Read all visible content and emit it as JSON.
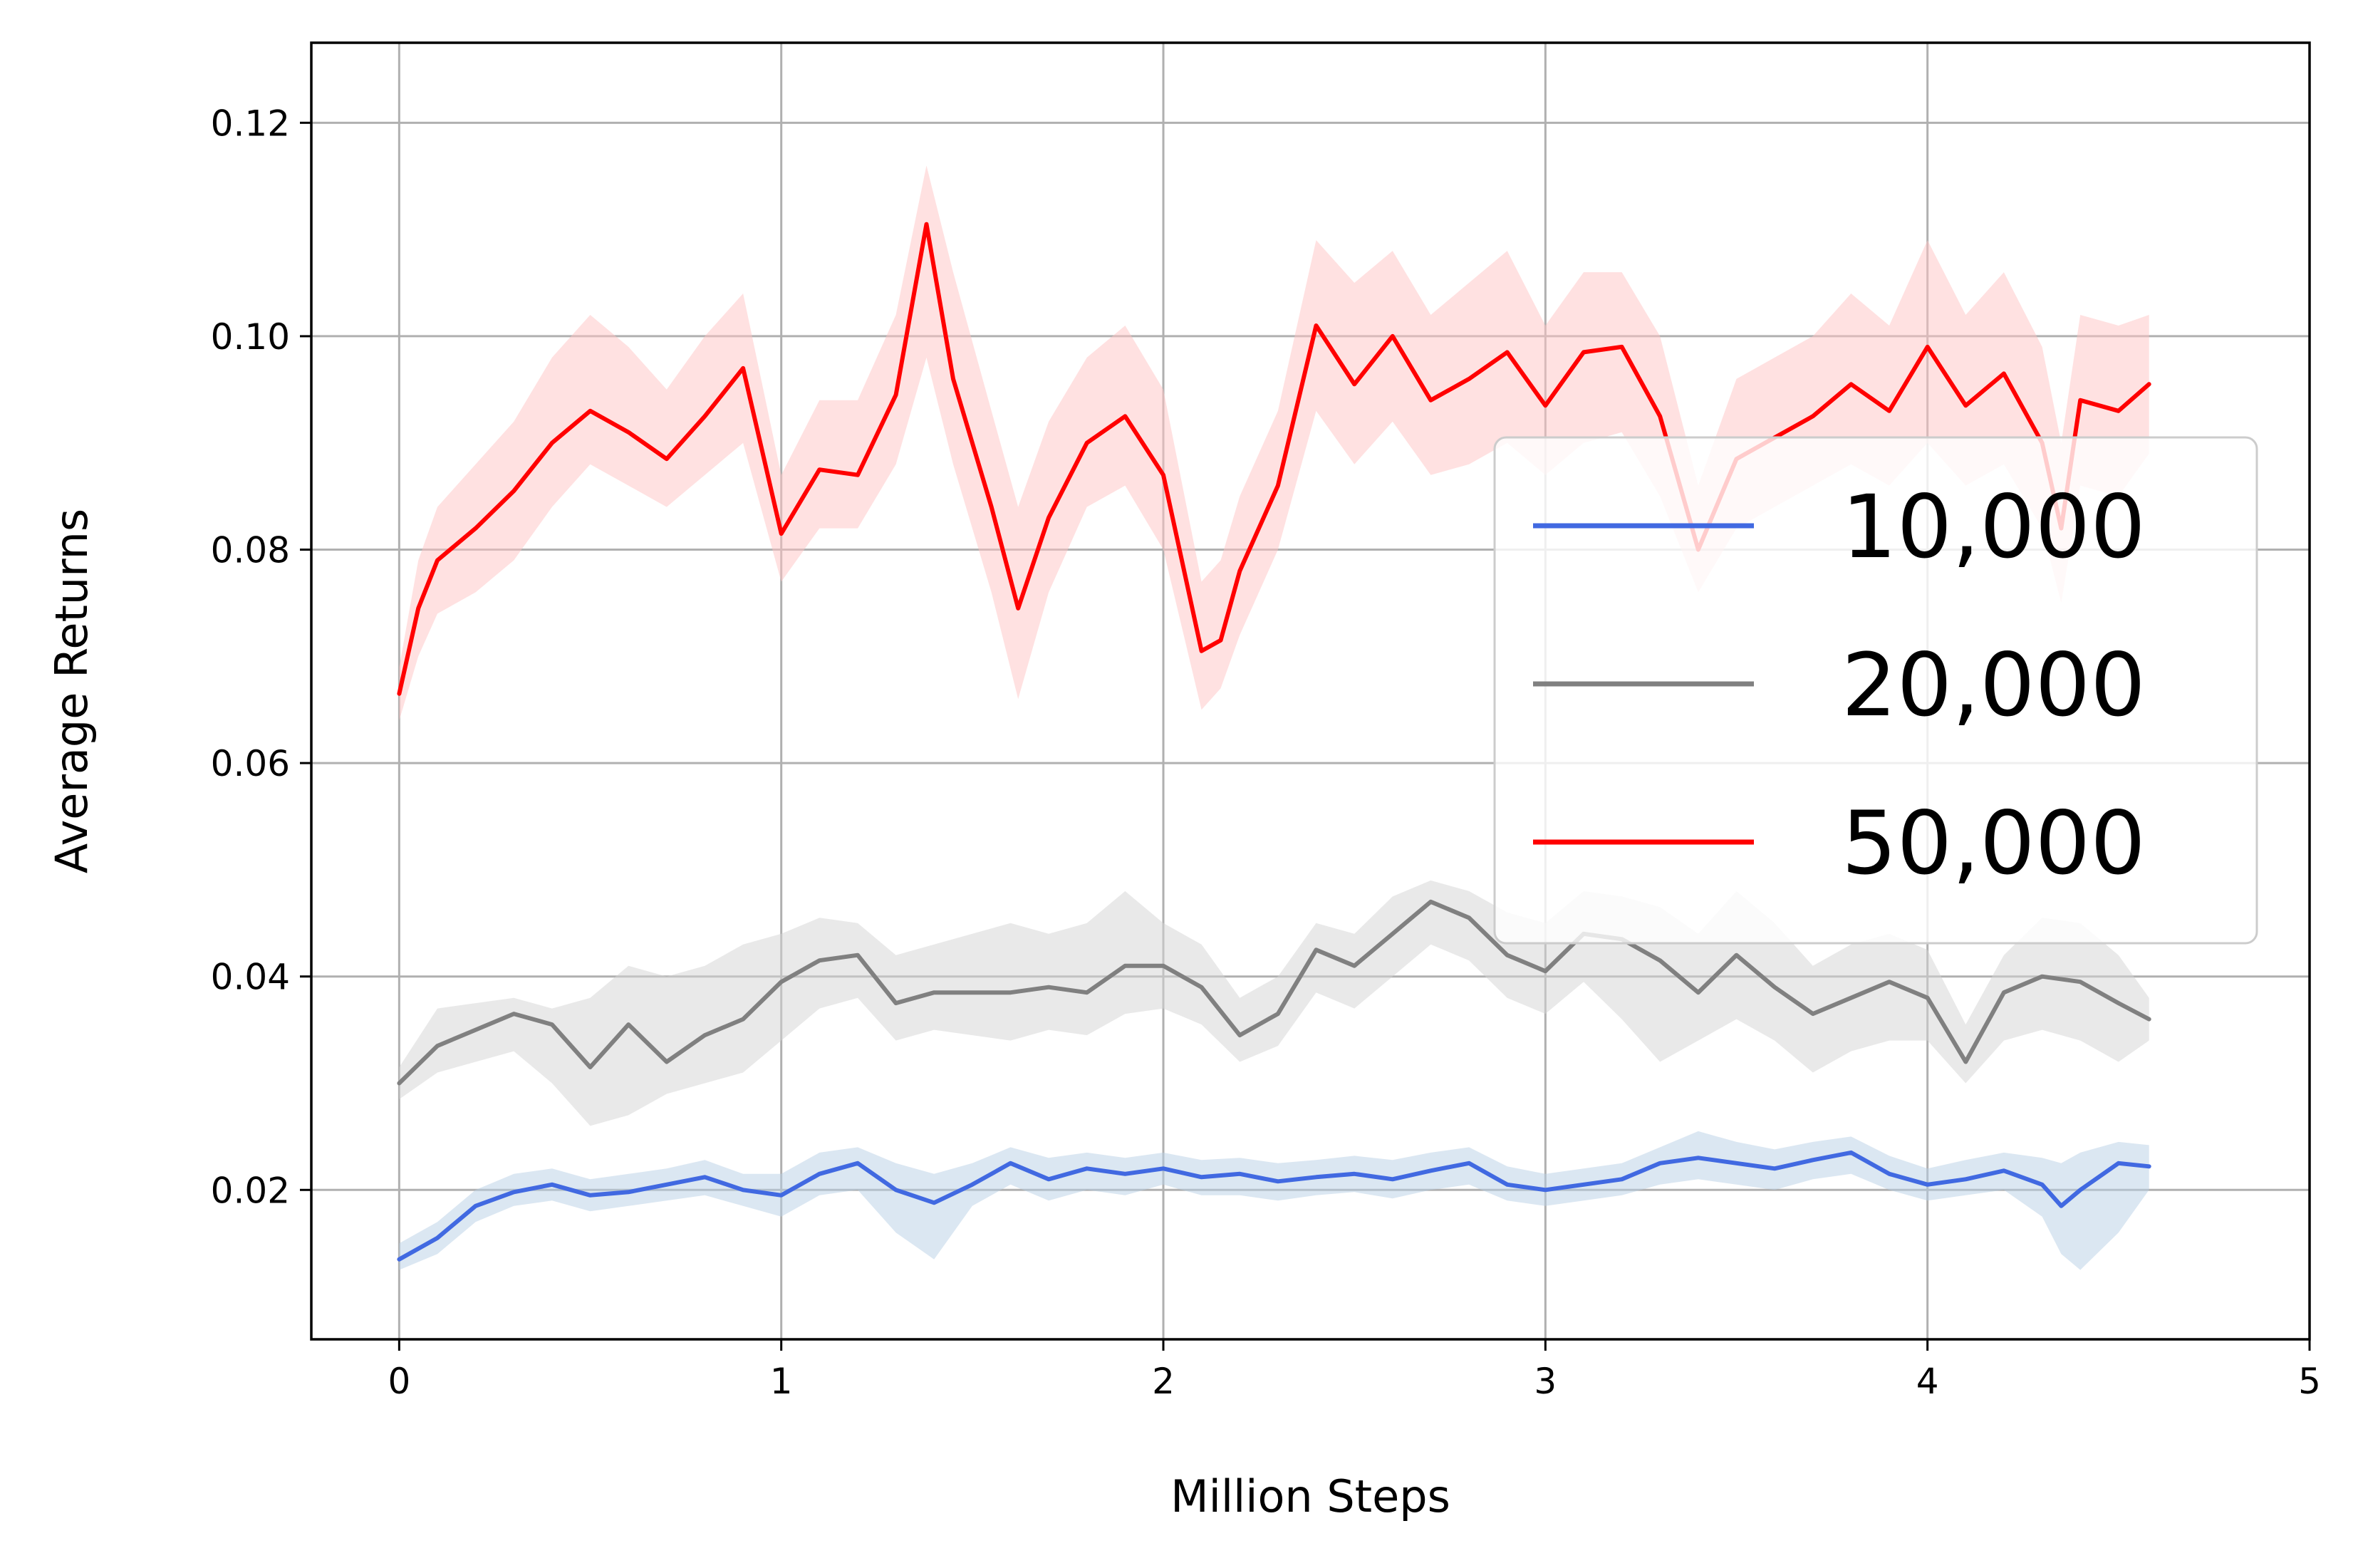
{
  "chart_data": {
    "type": "line",
    "xlabel": "Million Steps",
    "ylabel": "Average Returns",
    "xlim": [
      -0.23,
      5.0
    ],
    "ylim": [
      0.006,
      0.1275
    ],
    "xticks": [
      0,
      1,
      2,
      3,
      4,
      5
    ],
    "xtick_labels": [
      "0",
      "1",
      "2",
      "3",
      "4",
      "5"
    ],
    "yticks": [
      0.02,
      0.04,
      0.06,
      0.08,
      0.1,
      0.12
    ],
    "ytick_labels": [
      "0.02",
      "0.04",
      "0.06",
      "0.08",
      "0.10",
      "0.12"
    ],
    "grid": true,
    "legend_position": "center-right",
    "series": [
      {
        "name": "10,000",
        "color": "#4169e1",
        "band_color": "#b8cfe6",
        "x": [
          0.0,
          0.1,
          0.2,
          0.3,
          0.4,
          0.5,
          0.6,
          0.7,
          0.8,
          0.9,
          1.0,
          1.1,
          1.2,
          1.3,
          1.4,
          1.5,
          1.6,
          1.7,
          1.8,
          1.9,
          2.0,
          2.1,
          2.2,
          2.3,
          2.4,
          2.5,
          2.6,
          2.7,
          2.8,
          2.9,
          3.0,
          3.1,
          3.2,
          3.3,
          3.4,
          3.5,
          3.6,
          3.7,
          3.8,
          3.9,
          4.0,
          4.1,
          4.2,
          4.3,
          4.35,
          4.4,
          4.5,
          4.58
        ],
        "y": [
          0.0135,
          0.0155,
          0.0185,
          0.0198,
          0.0205,
          0.0195,
          0.0198,
          0.0205,
          0.0212,
          0.02,
          0.0195,
          0.0215,
          0.0225,
          0.02,
          0.0188,
          0.0205,
          0.0225,
          0.021,
          0.022,
          0.0215,
          0.022,
          0.0212,
          0.0215,
          0.0208,
          0.0212,
          0.0215,
          0.021,
          0.0218,
          0.0225,
          0.0205,
          0.02,
          0.0205,
          0.021,
          0.0225,
          0.023,
          0.0225,
          0.022,
          0.0228,
          0.0235,
          0.0215,
          0.0205,
          0.021,
          0.0218,
          0.0205,
          0.0185,
          0.02,
          0.0225,
          0.0222
        ],
        "lower": [
          0.0125,
          0.014,
          0.017,
          0.0185,
          0.019,
          0.018,
          0.0185,
          0.019,
          0.0195,
          0.0185,
          0.0175,
          0.0195,
          0.02,
          0.016,
          0.0135,
          0.0185,
          0.0205,
          0.019,
          0.02,
          0.0195,
          0.0205,
          0.0195,
          0.0195,
          0.019,
          0.0195,
          0.0198,
          0.0192,
          0.02,
          0.0205,
          0.019,
          0.0185,
          0.019,
          0.0195,
          0.0205,
          0.021,
          0.0205,
          0.02,
          0.021,
          0.0215,
          0.02,
          0.019,
          0.0195,
          0.02,
          0.0175,
          0.014,
          0.0125,
          0.016,
          0.02
        ],
        "upper": [
          0.015,
          0.017,
          0.02,
          0.0215,
          0.022,
          0.021,
          0.0215,
          0.022,
          0.0228,
          0.0215,
          0.0215,
          0.0235,
          0.024,
          0.0225,
          0.0215,
          0.0225,
          0.024,
          0.023,
          0.0235,
          0.023,
          0.0235,
          0.0228,
          0.023,
          0.0225,
          0.0228,
          0.0232,
          0.0228,
          0.0235,
          0.024,
          0.0222,
          0.0215,
          0.022,
          0.0225,
          0.024,
          0.0255,
          0.0245,
          0.0238,
          0.0245,
          0.025,
          0.0232,
          0.022,
          0.0228,
          0.0235,
          0.023,
          0.0225,
          0.0235,
          0.0245,
          0.0242
        ]
      },
      {
        "name": "20,000",
        "color": "#808080",
        "band_color": "#d3d3d3",
        "x": [
          0.0,
          0.1,
          0.2,
          0.3,
          0.4,
          0.5,
          0.6,
          0.7,
          0.8,
          0.9,
          1.0,
          1.1,
          1.2,
          1.3,
          1.4,
          1.5,
          1.6,
          1.7,
          1.8,
          1.9,
          2.0,
          2.1,
          2.2,
          2.3,
          2.4,
          2.5,
          2.6,
          2.7,
          2.8,
          2.9,
          3.0,
          3.1,
          3.2,
          3.3,
          3.4,
          3.5,
          3.6,
          3.7,
          3.8,
          3.9,
          4.0,
          4.1,
          4.2,
          4.3,
          4.4,
          4.5,
          4.58
        ],
        "y": [
          0.03,
          0.0335,
          0.035,
          0.0365,
          0.0355,
          0.0315,
          0.0355,
          0.032,
          0.0345,
          0.036,
          0.0395,
          0.0415,
          0.042,
          0.0375,
          0.0385,
          0.0385,
          0.0385,
          0.039,
          0.0385,
          0.041,
          0.041,
          0.039,
          0.0345,
          0.0365,
          0.0425,
          0.041,
          0.044,
          0.047,
          0.0455,
          0.042,
          0.0405,
          0.044,
          0.0435,
          0.0415,
          0.0385,
          0.042,
          0.039,
          0.0365,
          0.038,
          0.0395,
          0.038,
          0.032,
          0.0385,
          0.04,
          0.0395,
          0.0375,
          0.036
        ],
        "lower": [
          0.0285,
          0.031,
          0.032,
          0.033,
          0.03,
          0.026,
          0.027,
          0.029,
          0.03,
          0.031,
          0.034,
          0.037,
          0.038,
          0.034,
          0.035,
          0.0345,
          0.034,
          0.035,
          0.0345,
          0.0365,
          0.037,
          0.0355,
          0.032,
          0.0335,
          0.0385,
          0.037,
          0.04,
          0.043,
          0.0415,
          0.038,
          0.0365,
          0.0395,
          0.036,
          0.032,
          0.034,
          0.036,
          0.034,
          0.031,
          0.033,
          0.034,
          0.034,
          0.03,
          0.034,
          0.035,
          0.034,
          0.032,
          0.034
        ],
        "upper": [
          0.0315,
          0.037,
          0.0375,
          0.038,
          0.037,
          0.038,
          0.041,
          0.04,
          0.041,
          0.043,
          0.044,
          0.0455,
          0.045,
          0.042,
          0.043,
          0.044,
          0.045,
          0.044,
          0.045,
          0.048,
          0.045,
          0.043,
          0.038,
          0.04,
          0.045,
          0.044,
          0.0475,
          0.049,
          0.048,
          0.046,
          0.045,
          0.048,
          0.0475,
          0.0465,
          0.044,
          0.048,
          0.045,
          0.041,
          0.043,
          0.044,
          0.0425,
          0.0355,
          0.042,
          0.0455,
          0.045,
          0.042,
          0.038
        ]
      },
      {
        "name": "50,000",
        "color": "#ff0000",
        "band_color": "#ffc4c4",
        "x": [
          0.0,
          0.05,
          0.1,
          0.2,
          0.3,
          0.4,
          0.5,
          0.6,
          0.7,
          0.8,
          0.9,
          1.0,
          1.1,
          1.2,
          1.3,
          1.38,
          1.45,
          1.55,
          1.62,
          1.7,
          1.8,
          1.9,
          2.0,
          2.1,
          2.15,
          2.2,
          2.3,
          2.4,
          2.5,
          2.6,
          2.7,
          2.8,
          2.9,
          3.0,
          3.1,
          3.2,
          3.3,
          3.4,
          3.5,
          3.6,
          3.7,
          3.8,
          3.9,
          4.0,
          4.1,
          4.2,
          4.3,
          4.35,
          4.4,
          4.5,
          4.58
        ],
        "y": [
          0.0665,
          0.0745,
          0.079,
          0.082,
          0.0855,
          0.09,
          0.093,
          0.091,
          0.0885,
          0.0925,
          0.097,
          0.0815,
          0.0875,
          0.087,
          0.0945,
          0.1105,
          0.096,
          0.084,
          0.0745,
          0.083,
          0.09,
          0.0925,
          0.087,
          0.0705,
          0.0715,
          0.078,
          0.086,
          0.101,
          0.0955,
          0.1,
          0.094,
          0.096,
          0.0985,
          0.0935,
          0.0985,
          0.099,
          0.0925,
          0.08,
          0.0885,
          0.0905,
          0.0925,
          0.0955,
          0.093,
          0.099,
          0.0935,
          0.0965,
          0.09,
          0.082,
          0.094,
          0.093,
          0.0955
        ],
        "lower": [
          0.064,
          0.07,
          0.074,
          0.076,
          0.079,
          0.084,
          0.088,
          0.086,
          0.084,
          0.087,
          0.09,
          0.077,
          0.082,
          0.082,
          0.088,
          0.098,
          0.088,
          0.076,
          0.066,
          0.076,
          0.084,
          0.086,
          0.08,
          0.065,
          0.067,
          0.072,
          0.08,
          0.093,
          0.088,
          0.092,
          0.087,
          0.088,
          0.09,
          0.087,
          0.09,
          0.091,
          0.085,
          0.076,
          0.082,
          0.084,
          0.086,
          0.088,
          0.086,
          0.09,
          0.086,
          0.088,
          0.082,
          0.075,
          0.086,
          0.085,
          0.089
        ],
        "upper": [
          0.069,
          0.079,
          0.084,
          0.088,
          0.092,
          0.098,
          0.102,
          0.099,
          0.095,
          0.1,
          0.104,
          0.087,
          0.094,
          0.094,
          0.102,
          0.116,
          0.106,
          0.093,
          0.084,
          0.092,
          0.098,
          0.101,
          0.095,
          0.077,
          0.079,
          0.085,
          0.093,
          0.109,
          0.105,
          0.108,
          0.102,
          0.105,
          0.108,
          0.101,
          0.106,
          0.106,
          0.1,
          0.086,
          0.096,
          0.098,
          0.1,
          0.104,
          0.101,
          0.109,
          0.102,
          0.106,
          0.099,
          0.09,
          0.102,
          0.101,
          0.102
        ]
      }
    ]
  }
}
